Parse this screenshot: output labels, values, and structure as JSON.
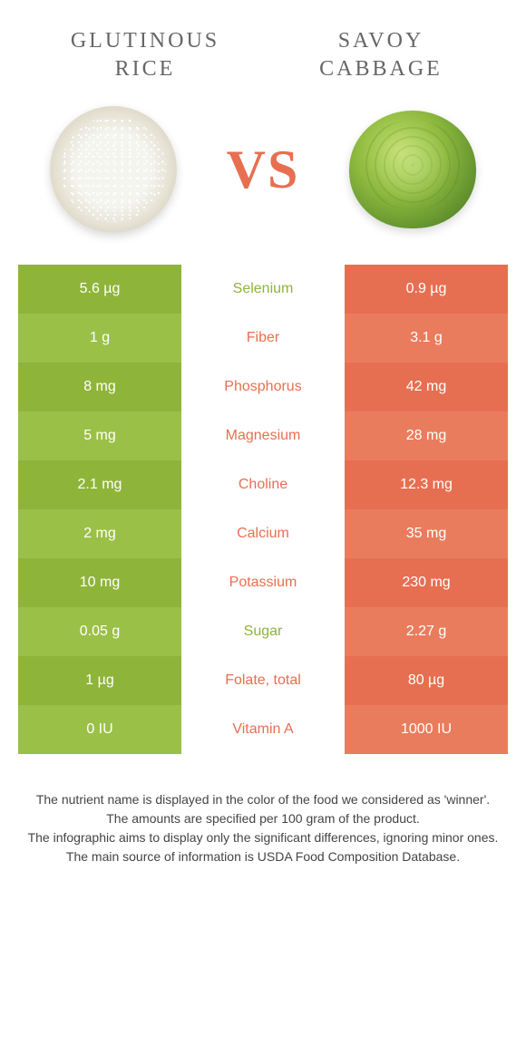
{
  "left_food": {
    "title": "GLUTINOUS RICE"
  },
  "right_food": {
    "title": "SAVOY CABBAGE"
  },
  "vs_label": "VS",
  "colors": {
    "left_a": "#8fb43a",
    "left_b": "#9bc048",
    "right_a": "#e76f51",
    "right_b": "#ea7c5e",
    "mid_left": "#8fb43a",
    "mid_right": "#e76f51",
    "vs": "#e76f51"
  },
  "rows": [
    {
      "left": "5.6 µg",
      "name": "Selenium",
      "right": "0.9 µg",
      "winner": "left"
    },
    {
      "left": "1 g",
      "name": "Fiber",
      "right": "3.1 g",
      "winner": "right"
    },
    {
      "left": "8 mg",
      "name": "Phosphorus",
      "right": "42 mg",
      "winner": "right"
    },
    {
      "left": "5 mg",
      "name": "Magnesium",
      "right": "28 mg",
      "winner": "right"
    },
    {
      "left": "2.1 mg",
      "name": "Choline",
      "right": "12.3 mg",
      "winner": "right"
    },
    {
      "left": "2 mg",
      "name": "Calcium",
      "right": "35 mg",
      "winner": "right"
    },
    {
      "left": "10 mg",
      "name": "Potassium",
      "right": "230 mg",
      "winner": "right"
    },
    {
      "left": "0.05 g",
      "name": "Sugar",
      "right": "2.27 g",
      "winner": "left"
    },
    {
      "left": "1 µg",
      "name": "Folate, total",
      "right": "80 µg",
      "winner": "right"
    },
    {
      "left": "0 IU",
      "name": "Vitamin A",
      "right": "1000 IU",
      "winner": "right"
    }
  ],
  "footer": {
    "l1": "The nutrient name is displayed in the color of the food we considered as 'winner'.",
    "l2": "The amounts are specified per 100 gram of the product.",
    "l3": "The infographic aims to display only the significant differences, ignoring minor ones.",
    "l4": "The main source of information is USDA Food Composition Database."
  }
}
